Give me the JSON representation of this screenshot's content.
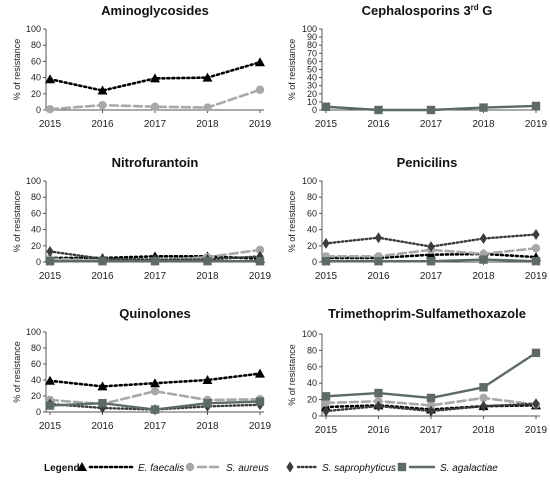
{
  "series_styles": [
    {
      "name": "E. faecalis",
      "color": "#000000",
      "dash": "2,3",
      "width": 2.6,
      "marker": "triangle"
    },
    {
      "name": "S. aureus",
      "color": "#a8a8a8",
      "dash": "8,4",
      "width": 2.6,
      "marker": "circle"
    },
    {
      "name": "S. saprophyticus",
      "color": "#3c3c3c",
      "dash": "1.5,2.5",
      "width": 2.4,
      "marker": "diamond"
    },
    {
      "name": "S. agalactiae",
      "color": "#5e6a66",
      "dash": "",
      "width": 2.4,
      "marker": "square"
    }
  ],
  "legend": {
    "title": "Legend:"
  },
  "chart_data": [
    {
      "type": "line",
      "title": "Aminoglycosides",
      "ylabel": "% of resistance",
      "ylim": [
        0,
        100
      ],
      "yticks": [
        0,
        20,
        40,
        60,
        80,
        100
      ],
      "x": [
        "2015",
        "2016",
        "2017",
        "2018",
        "2019"
      ],
      "series": [
        {
          "name": "E. faecalis",
          "values": [
            38,
            24,
            39,
            40,
            59
          ]
        },
        {
          "name": "S. aureus",
          "values": [
            1,
            6,
            4,
            3,
            25
          ]
        }
      ]
    },
    {
      "type": "line",
      "title": "Cephalosporins 3",
      "title_sup": "rd",
      "title_suffix": " G",
      "ylabel": "% of resistance",
      "ylim": [
        0,
        100
      ],
      "yticks": [
        0,
        10,
        20,
        30,
        40,
        50,
        60,
        70,
        80,
        90,
        100
      ],
      "x": [
        "2015",
        "2016",
        "2017",
        "2018",
        "2019"
      ],
      "series": [
        {
          "name": "S. agalactiae",
          "values": [
            4,
            0,
            0,
            3,
            5
          ]
        }
      ]
    },
    {
      "type": "line",
      "title": "Nitrofurantoin",
      "ylabel": "% of resistance",
      "ylim": [
        0,
        100
      ],
      "yticks": [
        0,
        20,
        40,
        60,
        80,
        100
      ],
      "x": [
        "2015",
        "2016",
        "2017",
        "2018",
        "2019"
      ],
      "series": [
        {
          "name": "E. faecalis",
          "values": [
            5,
            5,
            7,
            7,
            4
          ]
        },
        {
          "name": "S. aureus",
          "values": [
            4,
            2,
            2,
            6,
            15
          ]
        },
        {
          "name": "S. saprophyticus",
          "values": [
            13,
            4,
            3,
            3,
            7
          ]
        },
        {
          "name": "S. agalactiae",
          "values": [
            1,
            1,
            1,
            1,
            1
          ]
        }
      ]
    },
    {
      "type": "line",
      "title": "Penicilins",
      "ylabel": "% of resistance",
      "ylim": [
        0,
        100
      ],
      "yticks": [
        0,
        20,
        40,
        60,
        80,
        100
      ],
      "x": [
        "2015",
        "2016",
        "2017",
        "2018",
        "2019"
      ],
      "series": [
        {
          "name": "E. faecalis",
          "values": [
            5,
            5,
            9,
            10,
            6
          ]
        },
        {
          "name": "S. aureus",
          "values": [
            7,
            7,
            15,
            10,
            17
          ]
        },
        {
          "name": "S. saprophyticus",
          "values": [
            23,
            30,
            19,
            29,
            34
          ]
        },
        {
          "name": "S. agalactiae",
          "values": [
            1,
            1,
            1,
            3,
            1
          ]
        }
      ]
    },
    {
      "type": "line",
      "title": "Quinolones",
      "ylabel": "% of resistance",
      "ylim": [
        0,
        100
      ],
      "yticks": [
        0,
        20,
        40,
        60,
        80,
        100
      ],
      "x": [
        "2015",
        "2016",
        "2017",
        "2018",
        "2019"
      ],
      "series": [
        {
          "name": "E. faecalis",
          "values": [
            39,
            32,
            36,
            40,
            48
          ]
        },
        {
          "name": "S. aureus",
          "values": [
            15,
            10,
            26,
            15,
            16
          ]
        },
        {
          "name": "S. saprophyticus",
          "values": [
            10,
            5,
            3,
            7,
            9
          ]
        },
        {
          "name": "S. agalactiae",
          "values": [
            8,
            11,
            3,
            11,
            13
          ]
        }
      ]
    },
    {
      "type": "line",
      "title": "Trimethoprim-Sulfamethoxazole",
      "ylabel": "% of resistance",
      "ylim": [
        0,
        100
      ],
      "yticks": [
        0,
        20,
        40,
        60,
        80,
        100
      ],
      "x": [
        "2015",
        "2016",
        "2017",
        "2018",
        "2019"
      ],
      "series": [
        {
          "name": "E. faecalis",
          "values": [
            11,
            13,
            8,
            12,
            13
          ]
        },
        {
          "name": "S. aureus",
          "values": [
            16,
            18,
            13,
            22,
            14
          ]
        },
        {
          "name": "S. saprophyticus",
          "values": [
            6,
            12,
            6,
            12,
            15
          ]
        },
        {
          "name": "S. agalactiae",
          "values": [
            24,
            28,
            22,
            35,
            77
          ]
        }
      ]
    }
  ]
}
